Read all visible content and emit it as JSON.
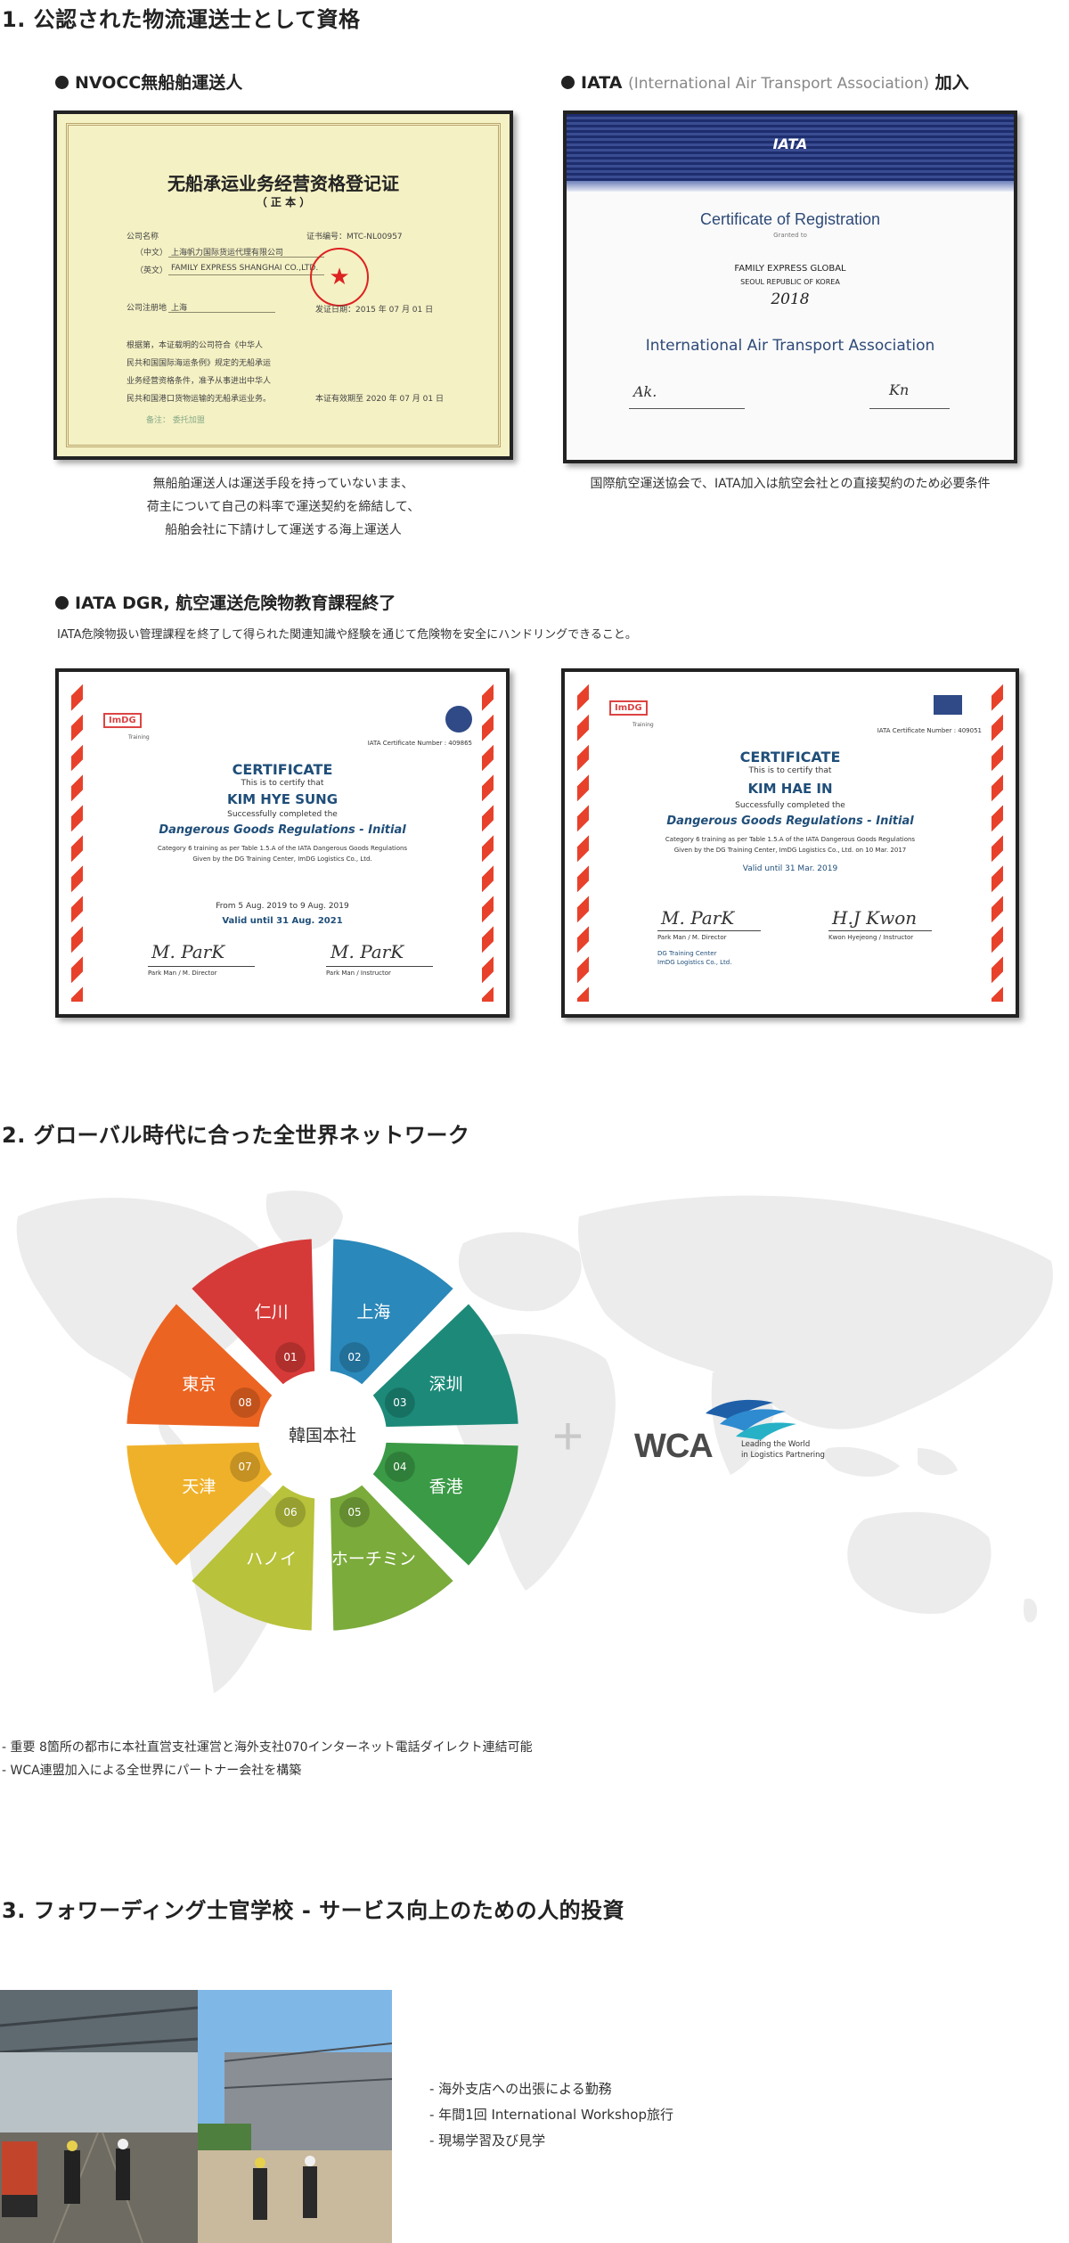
{
  "section1": {
    "title": "1. 公認された物流運送士として資格",
    "nvocc": {
      "heading": "NVOCC無船舶運送人",
      "cert_title": "无船承运业务经营资格登记证",
      "cert_subtitle": "（ 正 本 ）",
      "cert_company_cn": "上海帆力国际货运代理有限公司",
      "cert_company_en": "FAMILY EXPRESS SHANGHAI CO.,LTD.",
      "cert_no": "证书编号：MTC-NL00957",
      "cert_address": "上海",
      "caption_lines": [
        "無船舶運送人は運送手段を持っていないまま、",
        "荷主について自己の料率で運送契約を締結して、",
        "船舶会社に下請けして運送する海上運送人"
      ]
    },
    "iata": {
      "heading_bold": "IATA",
      "heading_note": "(International Air Transport Association)",
      "heading_tail": "加入",
      "logo": "IATA",
      "cert_title": "Certificate of Registration",
      "cert_company": "FAMILY EXPRESS GLOBAL",
      "cert_location": "SEOUL   REPUBLIC OF KOREA",
      "cert_year": "2018",
      "cert_assoc": "International Air Transport Association",
      "caption": "国際航空運送協会で、IATA加入は航空会社との直接契約のため必要条件"
    },
    "dgr": {
      "heading": "IATA DGR, 航空運送危険物教育課程終了",
      "description": "IATA危険物扱い管理課程を終了して得られた関連知識や経験を通じて危険物を安全にハンドリングできること。",
      "certs": [
        {
          "logo": "ImDG",
          "logo_sub": "Training",
          "number": "IATA Certificate Number : 409865",
          "title": "CERTIFICATE",
          "certify": "This is to certify that",
          "name": "KIM HYE SUNG",
          "completed": "Successfully completed the",
          "course": "Dangerous Goods Regulations - Initial",
          "detail1": "Category 6 training as per Table 1.5.A of the IATA Dangerous Goods Regulations",
          "detail2": "Given by the DG Training Center, ImDG Logistics Co., Ltd.",
          "period": "From 5 Aug. 2019 to 9 Aug. 2019",
          "valid": "Valid until 31 Aug. 2021",
          "sig1": "M. ParK",
          "sig1_label": "Park Man / M. Director",
          "sig2": "M. ParK",
          "sig2_label": "Park Man / Instructor"
        },
        {
          "logo": "ImDG",
          "logo_sub": "Training",
          "number": "IATA Certificate Number : 409051",
          "title": "CERTIFICATE",
          "certify": "This is to certify that",
          "name": "KIM HAE IN",
          "completed": "Successfully completed the",
          "course": "Dangerous Goods Regulations - Initial",
          "detail1": "Category 6 training as per Table 1.5.A of the IATA Dangerous Goods Regulations",
          "detail2": "Given by the DG Training Center, ImDG Logistics Co., Ltd. on 10 Mar. 2017",
          "valid": "Valid until 31 Mar. 2019",
          "sig1": "M. ParK",
          "sig1_label": "Park Man / M. Director",
          "sig2": "H.J Kwon",
          "sig2_label": "Kwon Hyejeong  / Instructor",
          "center": "DG Training Center",
          "center_company": "ImDG Logistics Co., Ltd."
        }
      ]
    }
  },
  "section2": {
    "title": "2. グローバル時代に合った全世界ネットワーク",
    "center_label": "韓国本社",
    "segments": [
      {
        "num": "01",
        "city": "仁川",
        "color": "#d63a38"
      },
      {
        "num": "02",
        "city": "上海",
        "color": "#2a88ba"
      },
      {
        "num": "03",
        "city": "深圳",
        "color": "#1d8a79"
      },
      {
        "num": "04",
        "city": "香港",
        "color": "#3a9a46"
      },
      {
        "num": "05",
        "city": "ホーチミン",
        "color": "#7bab3b"
      },
      {
        "num": "06",
        "city": "ハノイ",
        "color": "#b8c23a"
      },
      {
        "num": "07",
        "city": "天津",
        "color": "#f0b12a"
      },
      {
        "num": "08",
        "city": "東京",
        "color": "#ec6422"
      }
    ],
    "plus": "+",
    "wca_logo": "WCA",
    "wca_tagline1": "Leading the World",
    "wca_tagline2": "in Logistics Partnering",
    "notes": [
      "- 重要 8箇所の都市に本社直営支社運営と海外支社070インターネット電話ダイレクト連結可能",
      "- WCA連盟加入による全世界にパートナー会社を構築"
    ]
  },
  "section3": {
    "title": "3. フォワーディング士官学校 - サービス向上のための人的投資",
    "items": [
      "- 海外支店への出張による勤務",
      "- 年間1回 International Workshop旅行",
      "- 現場学習及び見学"
    ]
  }
}
